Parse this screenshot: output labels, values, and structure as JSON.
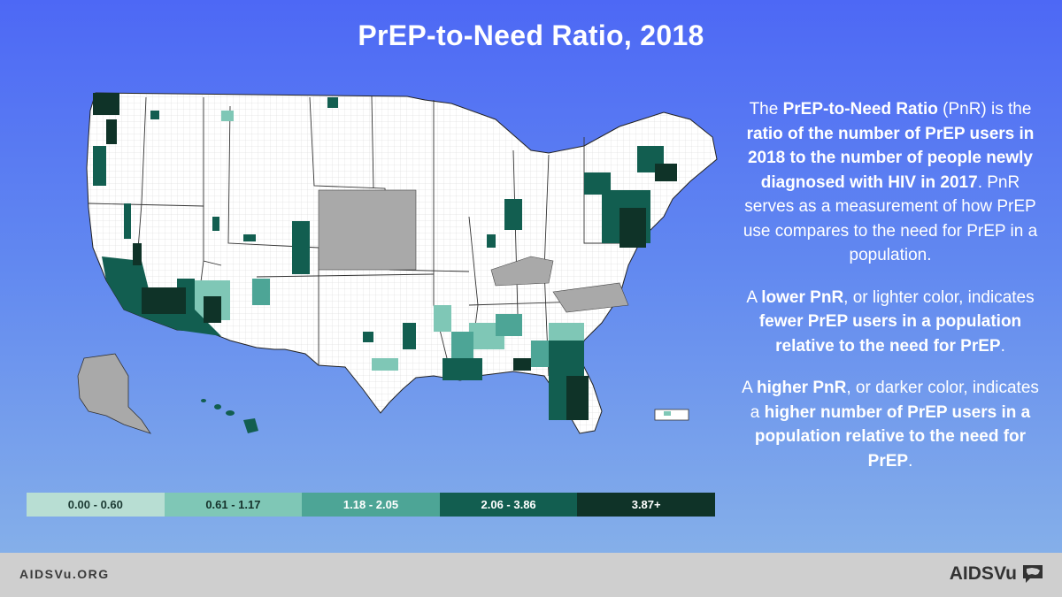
{
  "title": "PrEP-to-Need Ratio, 2018",
  "legend": [
    {
      "label": "0.00 - 0.60",
      "color": "#b8ded3",
      "text_color": "#1c3a33"
    },
    {
      "label": "0.61 - 1.17",
      "color": "#7fc7b6",
      "text_color": "#16332c"
    },
    {
      "label": "1.18 - 2.05",
      "color": "#4da596",
      "text_color": "#ffffff"
    },
    {
      "label": "2.06 - 3.86",
      "color": "#125e50",
      "text_color": "#ffffff"
    },
    {
      "label": "3.87+",
      "color": "#0f3328",
      "text_color": "#ffffff"
    }
  ],
  "explanation": {
    "p1": {
      "a": "The ",
      "b": "PrEP-to-Need Ratio",
      "c": " (PnR) is the ",
      "d": "ratio of the number of PrEP users in 2018 to the number of people newly diagnosed with HIV in 2017",
      "e": ". PnR serves as a measurement of how PrEP use compares to the need for PrEP in a population."
    },
    "p2": {
      "a": "A ",
      "b": "lower PnR",
      "c": ", or lighter color, indicates ",
      "d": "fewer PrEP users in a population relative to the need for PrEP",
      "e": "."
    },
    "p3": {
      "a": "A ",
      "b": "higher PnR",
      "c": ", or darker color, indicates a ",
      "d": "higher number of PrEP users in a population relative to the need for PrEP",
      "e": "."
    }
  },
  "footer": {
    "url": "AIDSVu.ORG",
    "logo": "AIDSVu"
  },
  "map_colors": {
    "no_data": "#a9a9a9",
    "background_county": "#ffffff",
    "border": "#333333"
  }
}
